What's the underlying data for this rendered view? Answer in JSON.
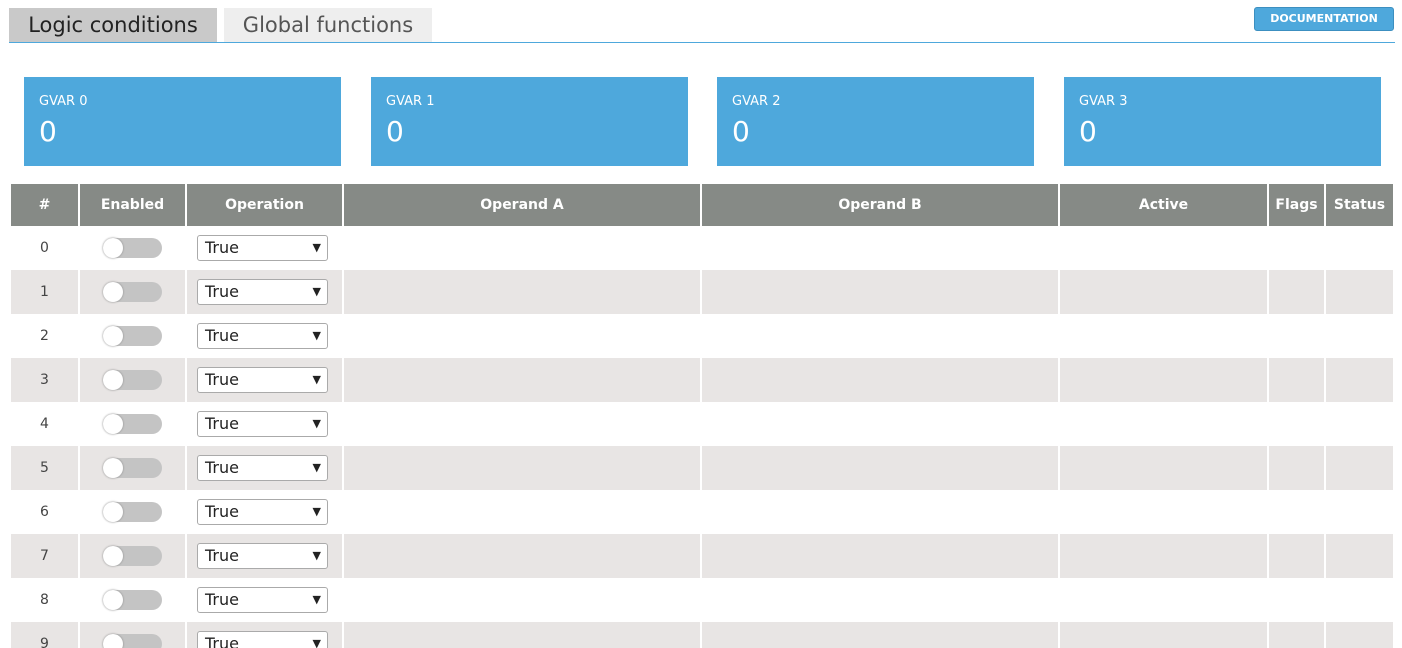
{
  "tabs": [
    {
      "label": "Logic conditions",
      "active": true
    },
    {
      "label": "Global functions",
      "active": false
    }
  ],
  "documentation_button": "DOCUMENTATION",
  "gvars": [
    {
      "label": "GVAR 0",
      "value": 0
    },
    {
      "label": "GVAR 1",
      "value": 0
    },
    {
      "label": "GVAR 2",
      "value": 0
    },
    {
      "label": "GVAR 3",
      "value": 0
    }
  ],
  "table": {
    "headers": [
      "#",
      "Enabled",
      "Operation",
      "Operand A",
      "Operand B",
      "Active",
      "Flags",
      "Status"
    ],
    "rows": [
      {
        "index": 0,
        "enabled": false,
        "operation": "True"
      },
      {
        "index": 1,
        "enabled": false,
        "operation": "True"
      },
      {
        "index": 2,
        "enabled": false,
        "operation": "True"
      },
      {
        "index": 3,
        "enabled": false,
        "operation": "True"
      },
      {
        "index": 4,
        "enabled": false,
        "operation": "True"
      },
      {
        "index": 5,
        "enabled": false,
        "operation": "True"
      },
      {
        "index": 6,
        "enabled": false,
        "operation": "True"
      },
      {
        "index": 7,
        "enabled": false,
        "operation": "True"
      },
      {
        "index": 8,
        "enabled": false,
        "operation": "True"
      },
      {
        "index": 9,
        "enabled": false,
        "operation": "True"
      }
    ]
  }
}
